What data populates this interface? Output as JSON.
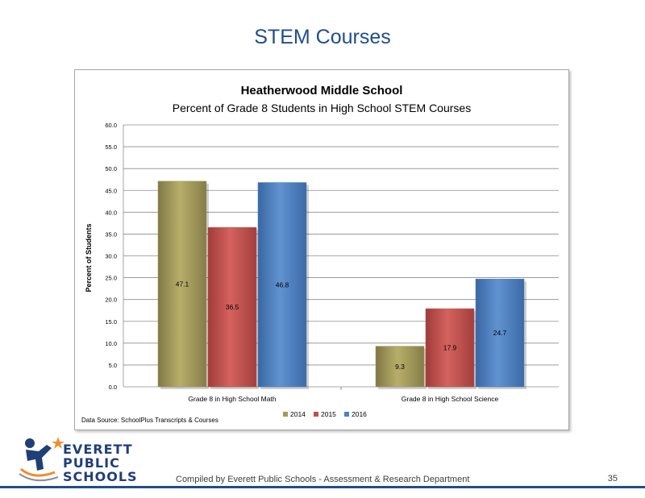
{
  "slide": {
    "title": "STEM Courses",
    "footer": "Compiled  by Everett Public Schools  - Assessment & Research Department",
    "page_number": "35"
  },
  "logo": {
    "line1": "EVERETT",
    "line2": "PUBLIC",
    "line3": "SCHOOLS"
  },
  "chart_data": {
    "type": "bar",
    "title": "Heatherwood Middle School",
    "subtitle": "Percent of Grade 8 Students in High School STEM Courses",
    "ylabel": "Percent of Students",
    "xlabel": "",
    "ylim": [
      0,
      60
    ],
    "yticks": [
      "0.0",
      "5.0",
      "10.0",
      "15.0",
      "20.0",
      "25.0",
      "30.0",
      "35.0",
      "40.0",
      "45.0",
      "50.0",
      "55.0",
      "60.0"
    ],
    "categories": [
      "Grade 8 in High School Math",
      "Grade 8 in High School Science"
    ],
    "series": [
      {
        "name": "2014",
        "color": "#a49a5a",
        "values": [
          47.1,
          9.3
        ]
      },
      {
        "name": "2015",
        "color": "#c0504d",
        "values": [
          36.5,
          17.9
        ]
      },
      {
        "name": "2016",
        "color": "#4f81bd",
        "values": [
          46.8,
          24.7
        ]
      }
    ],
    "grid": true,
    "legend": "bottom",
    "source_note": "Data Source: SchoolPlus Transcripts & Courses"
  }
}
